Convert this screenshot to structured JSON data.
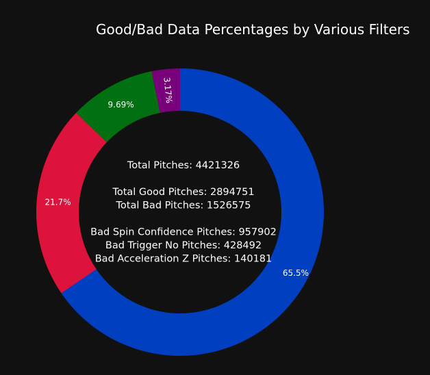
{
  "chart_data": {
    "type": "pie",
    "title": "Good/Bad Data Percentages by Various Filters",
    "hole": true,
    "categories": [
      "Good Pitches",
      "Bad Spin Confidence Pitches",
      "Bad Trigger No Pitches",
      "Bad Acceleration Z Pitches"
    ],
    "values": [
      2894751,
      957902,
      428492,
      140181
    ],
    "percent_labels": [
      "65.5%",
      "21.7%",
      "9.69%",
      "3.17%"
    ],
    "colors": [
      "#0040C0",
      "#DC143C",
      "#007010",
      "#780078"
    ],
    "legend": "none"
  },
  "center": {
    "lines": [
      "Total Pitches: 4421326",
      "",
      "Total Good Pitches: 2894751",
      "Total Bad Pitches: 1526575",
      "",
      "Bad Spin Confidence Pitches: 957902",
      "Bad Trigger No Pitches: 428492",
      "Bad Acceleration Z Pitches: 140181"
    ]
  }
}
